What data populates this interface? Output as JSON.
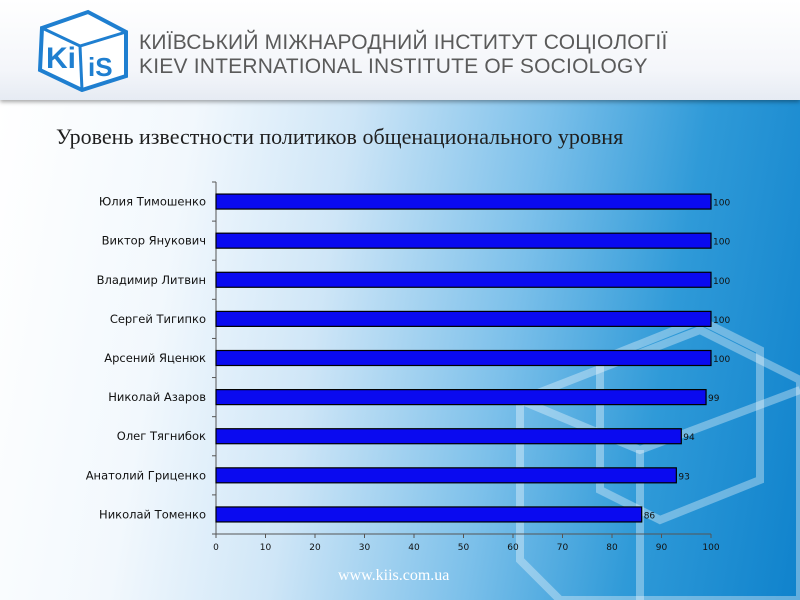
{
  "header": {
    "logo_text": "Ki iS",
    "institute_ua": "КИЇВСЬКИЙ МІЖНАРОДНИЙ ІНСТИТУТ СОЦІОЛОГІЇ",
    "institute_en": "KIEV INTERNATIONAL  INSTITUTE OF SOCIOLOGY"
  },
  "slide_title": "Уровень известности политиков общенационального уровня",
  "footer": {
    "url": "www.kiis.com.ua"
  },
  "colors": {
    "bar_fill": "#0a0af0",
    "bar_outline": "#000000",
    "logo_blue": "#1f7fd0",
    "header_text": "#5a5a5a"
  },
  "chart_data": {
    "type": "bar",
    "orientation": "horizontal",
    "categories": [
      "Юлия Тимошенко",
      "Виктор Янукович",
      "Владимир Литвин",
      "Сергей Тигипко",
      "Арсений Яценюк",
      "Николай Азаров",
      "Олег Тягнибок",
      "Анатолий Гриценко",
      "Николай Томенко"
    ],
    "values": [
      100,
      100,
      100,
      100,
      100,
      99,
      94,
      93,
      86
    ],
    "value_labels": [
      "100",
      "100",
      "100",
      "100",
      "100",
      "99",
      "94",
      "93",
      "86"
    ],
    "xlim": [
      0,
      100
    ],
    "xticks": [
      0,
      10,
      20,
      30,
      40,
      50,
      60,
      70,
      80,
      90,
      100
    ],
    "data_labels": true,
    "grid": false,
    "legend": false
  }
}
